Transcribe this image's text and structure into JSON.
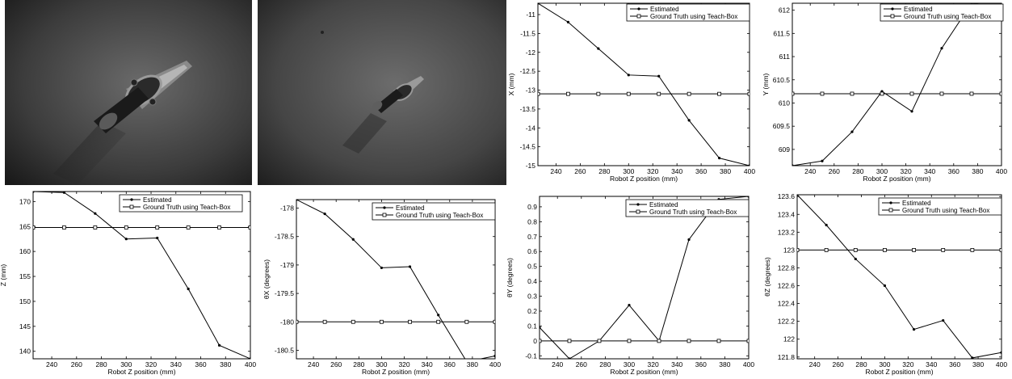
{
  "photos": [
    {
      "name": "camera-image-near",
      "description_icon": "grayscale-photo-handle-part"
    },
    {
      "name": "camera-image-far",
      "description_icon": "grayscale-photo-handle-part"
    }
  ],
  "colors": {
    "line": "#000000",
    "frame": "#000000",
    "background": "#ffffff"
  },
  "chart_data": [
    {
      "type": "line",
      "xlabel": "Robot Z position (mm)",
      "ylabel": "X (mm)",
      "xlim": [
        225,
        400
      ],
      "ylim": [
        -15,
        -10.7
      ],
      "xticks": [
        240,
        260,
        280,
        300,
        320,
        340,
        360,
        380,
        400
      ],
      "yticks": [
        -15,
        -14.5,
        -14,
        -13.5,
        -13,
        -12.5,
        -12,
        -11.5,
        -11
      ],
      "x": [
        225,
        250,
        275,
        300,
        325,
        350,
        375,
        400
      ],
      "series": [
        {
          "name": "Estimated",
          "marker": "dot",
          "values": [
            -10.7,
            -11.2,
            -11.9,
            -12.6,
            -12.63,
            -13.8,
            -14.8,
            -15.0
          ]
        },
        {
          "name": "Ground Truth using Teach-Box",
          "marker": "square",
          "values": [
            -13.1,
            -13.1,
            -13.1,
            -13.1,
            -13.1,
            -13.1,
            -13.1,
            -13.1
          ]
        }
      ],
      "legend": "top-right",
      "grid": false
    },
    {
      "type": "line",
      "xlabel": "Robot Z position (mm)",
      "ylabel": "Y (mm)",
      "xlim": [
        225,
        400
      ],
      "ylim": [
        608.65,
        612.15
      ],
      "xticks": [
        240,
        260,
        280,
        300,
        320,
        340,
        360,
        380,
        400
      ],
      "yticks": [
        609,
        609.5,
        610,
        610.5,
        611,
        611.5,
        612
      ],
      "x": [
        225,
        250,
        275,
        300,
        325,
        350,
        375,
        400
      ],
      "series": [
        {
          "name": "Estimated",
          "marker": "dot",
          "values": [
            608.65,
            608.75,
            609.38,
            610.25,
            609.82,
            611.18,
            612.15,
            612.05
          ]
        },
        {
          "name": "Ground Truth using Teach-Box",
          "marker": "square",
          "values": [
            610.2,
            610.2,
            610.2,
            610.2,
            610.2,
            610.2,
            610.2,
            610.2
          ]
        }
      ],
      "legend": "top-right",
      "grid": false
    },
    {
      "type": "line",
      "xlabel": "Robot Z position (mm)",
      "ylabel": "Z (mm)",
      "xlim": [
        225,
        400
      ],
      "ylim": [
        138.5,
        172
      ],
      "xticks": [
        240,
        260,
        280,
        300,
        320,
        340,
        360,
        380,
        400
      ],
      "yticks": [
        140,
        145,
        150,
        155,
        160,
        165,
        170
      ],
      "x": [
        225,
        250,
        275,
        300,
        325,
        350,
        375,
        400
      ],
      "series": [
        {
          "name": "Estimated",
          "marker": "dot",
          "values": [
            172,
            171.8,
            167.6,
            162.5,
            162.7,
            152.5,
            141.2,
            138.5
          ]
        },
        {
          "name": "Ground Truth using Teach-Box",
          "marker": "square",
          "values": [
            164.8,
            164.8,
            164.8,
            164.8,
            164.8,
            164.8,
            164.8,
            164.8
          ]
        }
      ],
      "legend": "top-right",
      "grid": false
    },
    {
      "type": "line",
      "xlabel": "Robot Z position (mm)",
      "ylabel": "θX (degrees)",
      "xlim": [
        225,
        400
      ],
      "ylim": [
        -180.65,
        -177.85
      ],
      "xticks": [
        240,
        260,
        280,
        300,
        320,
        340,
        360,
        380,
        400
      ],
      "yticks": [
        -180.5,
        -180,
        -179.5,
        -179,
        -178.5,
        -178
      ],
      "x": [
        225,
        250,
        275,
        300,
        325,
        350,
        375,
        400
      ],
      "series": [
        {
          "name": "Estimated",
          "marker": "dot",
          "values": [
            -177.85,
            -178.1,
            -178.55,
            -179.05,
            -179.03,
            -179.88,
            -180.7,
            -180.6
          ]
        },
        {
          "name": "Ground Truth using Teach-Box",
          "marker": "square",
          "values": [
            -180,
            -180,
            -180,
            -180,
            -180,
            -180,
            -180,
            -180
          ]
        }
      ],
      "legend": "top-right",
      "grid": false
    },
    {
      "type": "line",
      "xlabel": "Robot Z position (mm)",
      "ylabel": "θY (degrees)",
      "xlim": [
        225,
        400
      ],
      "ylim": [
        -0.12,
        0.97
      ],
      "xticks": [
        240,
        260,
        280,
        300,
        320,
        340,
        360,
        380,
        400
      ],
      "yticks": [
        -0.1,
        0,
        0.1,
        0.2,
        0.3,
        0.4,
        0.5,
        0.6,
        0.7,
        0.8,
        0.9
      ],
      "x": [
        225,
        250,
        275,
        300,
        325,
        350,
        375,
        400
      ],
      "series": [
        {
          "name": "Estimated",
          "marker": "dot",
          "values": [
            0.09,
            -0.12,
            0.0,
            0.24,
            0.0,
            0.68,
            0.95,
            0.97
          ]
        },
        {
          "name": "Ground Truth using Teach-Box",
          "marker": "square",
          "values": [
            0,
            0,
            0,
            0,
            0,
            0,
            0,
            0
          ]
        }
      ],
      "legend": "top-right",
      "grid": false
    },
    {
      "type": "line",
      "xlabel": "Robot Z position (mm)",
      "ylabel": "θZ (degrees)",
      "xlim": [
        225,
        400
      ],
      "ylim": [
        121.78,
        123.62
      ],
      "xticks": [
        240,
        260,
        280,
        300,
        320,
        340,
        360,
        380,
        400
      ],
      "yticks": [
        121.8,
        122,
        122.2,
        122.4,
        122.6,
        122.8,
        123,
        123.2,
        123.4,
        123.6
      ],
      "x": [
        225,
        250,
        275,
        300,
        325,
        350,
        375,
        400
      ],
      "series": [
        {
          "name": "Estimated",
          "marker": "dot",
          "values": [
            123.62,
            123.28,
            122.9,
            122.6,
            122.11,
            122.21,
            121.79,
            121.85
          ]
        },
        {
          "name": "Ground Truth using Teach-Box",
          "marker": "square",
          "values": [
            123,
            123,
            123,
            123,
            123,
            123,
            123,
            123
          ]
        }
      ],
      "legend": "top-right",
      "grid": false
    }
  ]
}
